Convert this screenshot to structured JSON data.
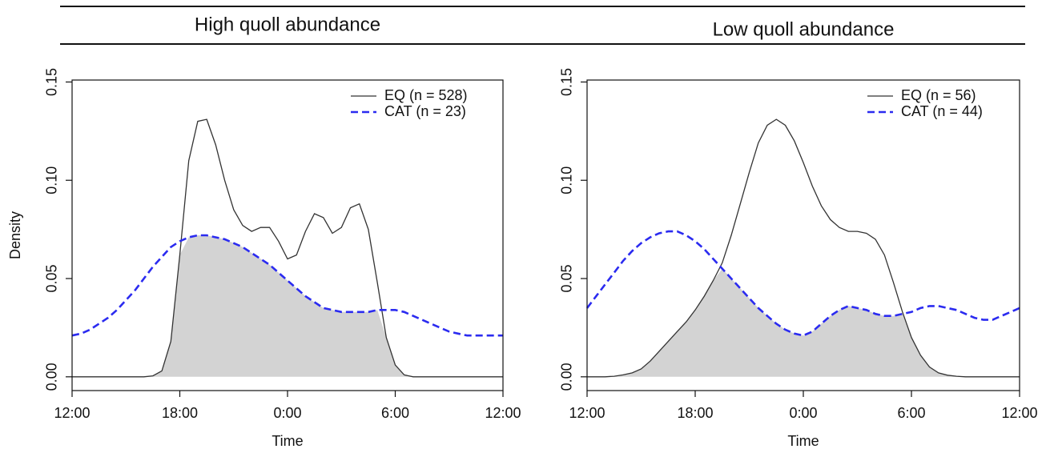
{
  "chart_data": [
    {
      "type": "line",
      "title": "High quoll abundance",
      "xlabel": "Time",
      "ylabel": "Density",
      "x": [
        0,
        0.5,
        1,
        1.5,
        2,
        2.5,
        3,
        3.5,
        4,
        4.5,
        5,
        5.5,
        6,
        6.5,
        7,
        7.5,
        8,
        8.5,
        9,
        9.5,
        10,
        10.5,
        11,
        11.5,
        12,
        12.5,
        13,
        13.5,
        14,
        14.5,
        15,
        15.5,
        16,
        16.5,
        17,
        17.5,
        18,
        18.5,
        19,
        19.5,
        20,
        20.5,
        21,
        21.5,
        22,
        22.5,
        23,
        23.5,
        24
      ],
      "series": [
        {
          "name": "EQ (n = 528)",
          "color": "#333333",
          "dash": false,
          "values": [
            0,
            0,
            0,
            0,
            0,
            0,
            0,
            0,
            0,
            0.0005,
            0.003,
            0.018,
            0.062,
            0.11,
            0.13,
            0.131,
            0.118,
            0.1,
            0.085,
            0.077,
            0.074,
            0.076,
            0.076,
            0.069,
            0.06,
            0.062,
            0.074,
            0.083,
            0.081,
            0.073,
            0.076,
            0.086,
            0.088,
            0.075,
            0.048,
            0.02,
            0.006,
            0.001,
            0,
            0,
            0,
            0,
            0,
            0,
            0,
            0,
            0,
            0,
            0
          ]
        },
        {
          "name": "CAT (n = 23)",
          "color": "#2b2bf0",
          "dash": true,
          "values": [
            0.021,
            0.022,
            0.024,
            0.027,
            0.03,
            0.034,
            0.039,
            0.044,
            0.05,
            0.056,
            0.061,
            0.066,
            0.069,
            0.071,
            0.072,
            0.072,
            0.071,
            0.07,
            0.068,
            0.066,
            0.063,
            0.06,
            0.057,
            0.053,
            0.049,
            0.045,
            0.041,
            0.038,
            0.035,
            0.034,
            0.033,
            0.033,
            0.033,
            0.033,
            0.034,
            0.034,
            0.034,
            0.033,
            0.031,
            0.029,
            0.027,
            0.025,
            0.023,
            0.022,
            0.021,
            0.021,
            0.021,
            0.021,
            0.021
          ]
        }
      ],
      "overlap_shaded": true,
      "overlap_color": "#d3d3d3",
      "xlim": [
        0,
        24
      ],
      "xticks": [
        {
          "value": 0,
          "label": "12:00"
        },
        {
          "value": 6,
          "label": "18:00"
        },
        {
          "value": 12,
          "label": "0:00"
        },
        {
          "value": 18,
          "label": "6:00"
        },
        {
          "value": 24,
          "label": "12:00"
        }
      ],
      "ylim": [
        -0.007,
        0.151
      ],
      "yticks": [
        {
          "value": 0,
          "label": "0.00"
        },
        0.05,
        {
          "value": 0.1,
          "label": "0.10"
        },
        0.15
      ],
      "legend": "topright"
    },
    {
      "type": "line",
      "title": "Low quoll abundance",
      "xlabel": "Time",
      "x": [
        0,
        0.5,
        1,
        1.5,
        2,
        2.5,
        3,
        3.5,
        4,
        4.5,
        5,
        5.5,
        6,
        6.5,
        7,
        7.5,
        8,
        8.5,
        9,
        9.5,
        10,
        10.5,
        11,
        11.5,
        12,
        12.5,
        13,
        13.5,
        14,
        14.5,
        15,
        15.5,
        16,
        16.5,
        17,
        17.5,
        18,
        18.5,
        19,
        19.5,
        20,
        20.5,
        21,
        21.5,
        22,
        22.5,
        23,
        23.5,
        24
      ],
      "series": [
        {
          "name": "EQ (n = 56)",
          "color": "#333333",
          "dash": false,
          "values": [
            0,
            0,
            0,
            0.0003,
            0.001,
            0.002,
            0.004,
            0.008,
            0.013,
            0.018,
            0.023,
            0.028,
            0.034,
            0.041,
            0.049,
            0.058,
            0.072,
            0.088,
            0.104,
            0.119,
            0.128,
            0.131,
            0.128,
            0.12,
            0.109,
            0.097,
            0.087,
            0.08,
            0.076,
            0.074,
            0.074,
            0.073,
            0.07,
            0.062,
            0.048,
            0.033,
            0.02,
            0.011,
            0.005,
            0.002,
            0.0008,
            0.0003,
            0,
            0,
            0,
            0,
            0,
            0,
            0
          ]
        },
        {
          "name": "CAT (n = 44)",
          "color": "#2b2bf0",
          "dash": true,
          "values": [
            0.035,
            0.041,
            0.047,
            0.053,
            0.059,
            0.064,
            0.068,
            0.071,
            0.073,
            0.074,
            0.074,
            0.072,
            0.069,
            0.065,
            0.06,
            0.055,
            0.05,
            0.045,
            0.04,
            0.035,
            0.031,
            0.027,
            0.024,
            0.022,
            0.021,
            0.023,
            0.027,
            0.031,
            0.034,
            0.036,
            0.035,
            0.034,
            0.032,
            0.031,
            0.031,
            0.032,
            0.033,
            0.035,
            0.036,
            0.036,
            0.035,
            0.034,
            0.032,
            0.03,
            0.029,
            0.029,
            0.031,
            0.033,
            0.035
          ]
        }
      ],
      "overlap_shaded": true,
      "overlap_color": "#d3d3d3",
      "xlim": [
        0,
        24
      ],
      "xticks": [
        {
          "value": 0,
          "label": "12:00"
        },
        {
          "value": 6,
          "label": "18:00"
        },
        {
          "value": 12,
          "label": "0:00"
        },
        {
          "value": 18,
          "label": "6:00"
        },
        {
          "value": 24,
          "label": "12:00"
        }
      ],
      "ylim": [
        -0.007,
        0.151
      ],
      "yticks": [
        {
          "value": 0,
          "label": "0.00"
        },
        0.05,
        {
          "value": 0.1,
          "label": "0.10"
        },
        0.15
      ],
      "legend": "topright"
    }
  ]
}
